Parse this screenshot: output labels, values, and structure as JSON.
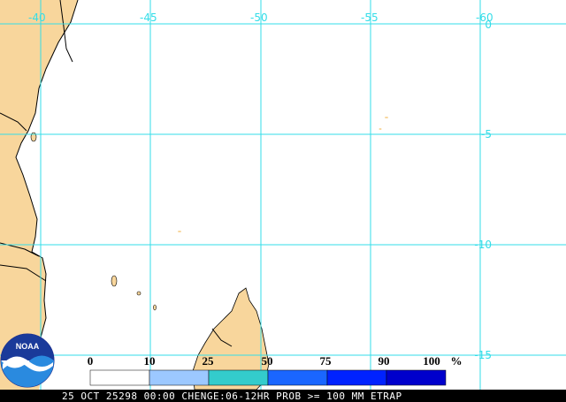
{
  "map": {
    "longitude_labels": [
      "-40",
      "-45",
      "-50",
      "-55",
      "-60"
    ],
    "latitude_labels": [
      "0",
      "-5",
      "-10",
      "-15"
    ],
    "land_color": "#f8d69c",
    "ocean_color": "#ffffff",
    "grid_color": "#33dde8"
  },
  "legend": {
    "ticks": [
      "0",
      "10",
      "25",
      "50",
      "75",
      "90",
      "100"
    ],
    "unit": "%",
    "colors": [
      "#ffffff",
      "#9cc8ff",
      "#33cccc",
      "#1a66ff",
      "#0022ff",
      "#0000cc",
      "#000099"
    ]
  },
  "logo": {
    "text": "NOAA",
    "icon": "noaa-logo-icon"
  },
  "footer": {
    "text": "25 OCT 25298 00:00 CHENGE:06-12HR PROB >= 100 MM ETRAP"
  }
}
